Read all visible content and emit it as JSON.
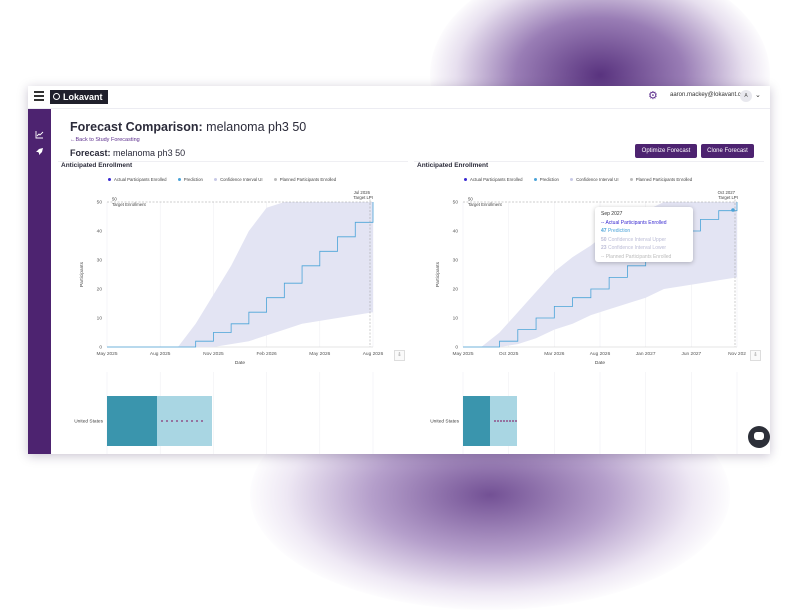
{
  "header": {
    "logo": "Lokavant",
    "user_email": "aaron.mackey@lokavant.com",
    "avatar_initial": "A"
  },
  "page": {
    "title": "Forecast Comparison:",
    "title_sub": "melanoma ph3 50",
    "back_link": "←Back to Study Forecasting",
    "forecast_label": "Forecast:",
    "forecast_name": "melanoma ph3 50",
    "optimize_button": "Optimize Forecast",
    "clone_button": "Clone Forecast"
  },
  "colors": {
    "brand": "#4d2370",
    "actual": "#3a2bd1",
    "prediction": "#4aa3d8",
    "ci_band": "#e3e4f3",
    "bar_dark": "#3a95ad",
    "bar_light": "#a9d6e3"
  },
  "legend": {
    "actual": "Actual Participants Enrolled",
    "prediction": "Prediction",
    "ci": "Confidence Interval UI",
    "planned": "Planned Participants Enrolled"
  },
  "chart_data": [
    {
      "type": "area",
      "title": "Anticipated Enrollment",
      "xlabel": "Date",
      "ylabel": "Participants",
      "ylim": [
        0,
        50
      ],
      "y_ticks": [
        "0",
        "10",
        "20",
        "30",
        "40",
        "50"
      ],
      "x_ticks": [
        "May 2025",
        "Aug 2025",
        "Nov 2025",
        "Feb 2026",
        "May 2026",
        "Aug 2026"
      ],
      "target_label": "50",
      "target_text": "Target Enrollment",
      "lpi_label": "Jul 2026",
      "lpi_text": "Target LPI",
      "x_months": [
        0,
        1,
        2,
        3,
        4,
        5,
        6,
        7,
        8,
        9,
        10,
        11,
        12,
        13,
        14,
        15
      ],
      "prediction": [
        0,
        0,
        0,
        0,
        0,
        2,
        5,
        8,
        12,
        17,
        22,
        28,
        33,
        38,
        43,
        50
      ],
      "ci_upper": [
        0,
        0,
        0,
        0,
        0,
        8,
        18,
        28,
        40,
        48,
        50,
        50,
        50,
        50,
        50,
        50
      ],
      "ci_lower": [
        0,
        0,
        0,
        0,
        0,
        0,
        0,
        1,
        2,
        4,
        6,
        8,
        9,
        10,
        11,
        12
      ],
      "country_bar": {
        "country": "United States"
      }
    },
    {
      "type": "area",
      "title": "Anticipated Enrollment",
      "xlabel": "Date",
      "ylabel": "Participants",
      "ylim": [
        0,
        50
      ],
      "y_ticks": [
        "0",
        "10",
        "20",
        "30",
        "40",
        "50"
      ],
      "x_ticks": [
        "May 2025",
        "Oct 2025",
        "Mar 2026",
        "Aug 2026",
        "Jan 2027",
        "Jun 2027",
        "Nov 202"
      ],
      "target_label": "50",
      "target_text": "Target Enrollment",
      "lpi_label": "Oct 2027",
      "lpi_text": "Target LPI",
      "x_months": [
        0,
        2,
        4,
        6,
        8,
        10,
        12,
        14,
        16,
        18,
        20,
        22,
        24,
        26,
        28,
        30
      ],
      "prediction": [
        0,
        0,
        2,
        6,
        10,
        14,
        17,
        20,
        24,
        28,
        32,
        36,
        40,
        44,
        47,
        50
      ],
      "ci_upper": [
        0,
        0,
        5,
        12,
        19,
        26,
        31,
        35,
        40,
        44,
        47,
        50,
        50,
        50,
        50,
        50
      ],
      "ci_lower": [
        0,
        0,
        0,
        1,
        3,
        6,
        8,
        11,
        13,
        15,
        17,
        20,
        21,
        22,
        23,
        24
      ],
      "country_bar": {
        "country": "United States"
      }
    }
  ],
  "tooltip": {
    "date": "Sep 2027",
    "actual": "-- Actual Participants Enrolled",
    "prediction_value": "47",
    "prediction_label": "Prediction",
    "upper_value": "50",
    "upper_label": "Confidence Interval Upper",
    "lower_value": "23",
    "lower_label": "Confidence Interval Lower",
    "planned": "-- Planned Participants Enrolled"
  }
}
